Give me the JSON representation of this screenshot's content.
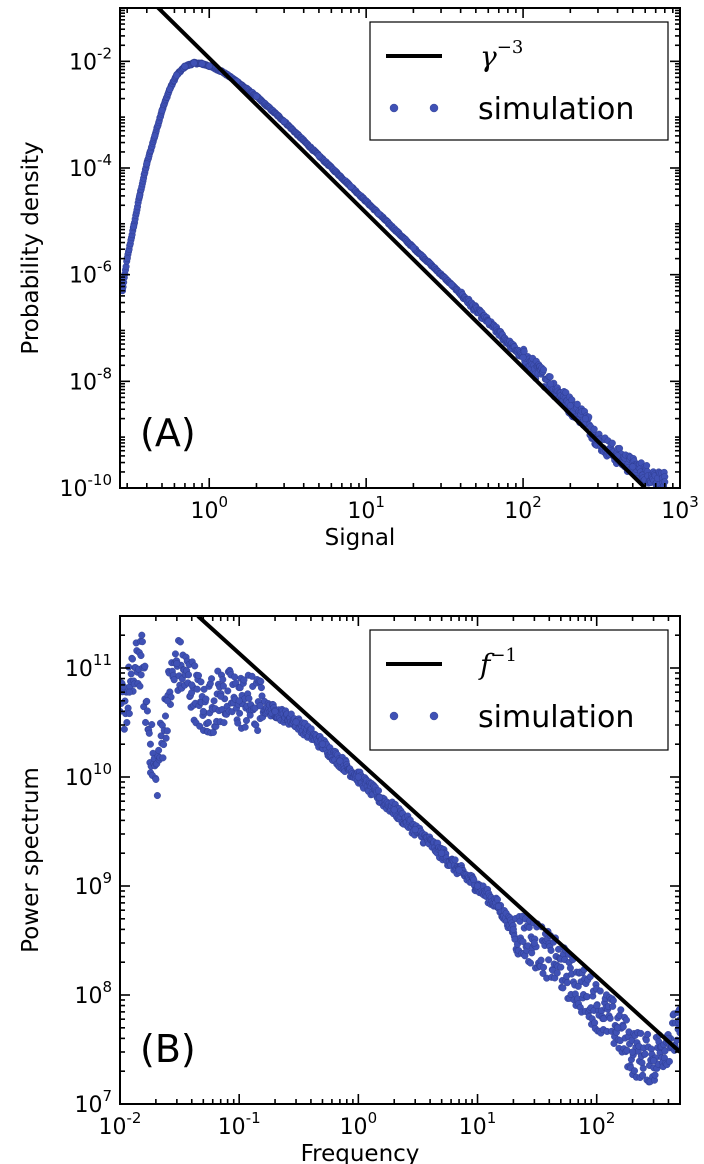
{
  "chart_data": [
    {
      "type": "scatter",
      "panel_label": "(A)",
      "xlabel": "Signal",
      "ylabel": "Probability density",
      "xscale": "log",
      "yscale": "log",
      "xlim": [
        0.27,
        1000
      ],
      "ylim": [
        1e-10,
        0.1
      ],
      "x_ticks": [
        {
          "base": "10",
          "exp": "0",
          "value": 1
        },
        {
          "base": "10",
          "exp": "1",
          "value": 10
        },
        {
          "base": "10",
          "exp": "2",
          "value": 100
        },
        {
          "base": "10",
          "exp": "3",
          "value": 1000
        }
      ],
      "y_ticks": [
        {
          "base": "10",
          "exp": "-10",
          "value": 1e-10
        },
        {
          "base": "10",
          "exp": "-8",
          "value": 1e-08
        },
        {
          "base": "10",
          "exp": "-6",
          "value": 1e-06
        },
        {
          "base": "10",
          "exp": "-4",
          "value": 0.0001
        },
        {
          "base": "10",
          "exp": "-2",
          "value": 0.01
        }
      ],
      "legend": {
        "position": "upper right",
        "line_label_base": "γ",
        "line_label_exp": "−3",
        "points_label": "simulation"
      },
      "series": [
        {
          "kind": "line",
          "style": "black solid",
          "points": [
            [
              0.28,
              0.46
            ],
            [
              600,
              1e-10
            ]
          ]
        },
        {
          "kind": "scatter",
          "color": "#3f51b5",
          "points": [
            [
              0.28,
              5e-07
            ],
            [
              0.3,
              2e-06
            ],
            [
              0.33,
              8e-06
            ],
            [
              0.36,
              3e-05
            ],
            [
              0.4,
              0.00012
            ],
            [
              0.45,
              0.0004
            ],
            [
              0.5,
              0.0012
            ],
            [
              0.56,
              0.003
            ],
            [
              0.62,
              0.0055
            ],
            [
              0.7,
              0.008
            ],
            [
              0.8,
              0.0093
            ],
            [
              0.9,
              0.009
            ],
            [
              1.0,
              0.0082
            ],
            [
              1.2,
              0.0065
            ],
            [
              1.5,
              0.0042
            ],
            [
              2.0,
              0.0022
            ],
            [
              3.0,
              0.00075
            ],
            [
              5.0,
              0.00017
            ],
            [
              8.0,
              4.5e-05
            ],
            [
              12,
              1.4e-05
            ],
            [
              20,
              3.2e-06
            ],
            [
              35,
              6.5e-07
            ],
            [
              60,
              1.3e-07
            ],
            [
              100,
              2.8e-08
            ],
            [
              150,
              9e-09
            ],
            [
              200,
              3.5e-09
            ],
            [
              250,
              2e-09
            ],
            [
              300,
              8e-10
            ],
            [
              400,
              4e-10
            ],
            [
              500,
              2.5e-10
            ],
            [
              800,
              1.3e-10
            ]
          ]
        }
      ]
    },
    {
      "type": "scatter",
      "panel_label": "(B)",
      "xlabel": "Frequency",
      "ylabel": "Power spectrum",
      "xscale": "log",
      "yscale": "log",
      "xlim": [
        0.01,
        500
      ],
      "ylim": [
        10000000.0,
        300000000000.0
      ],
      "x_ticks": [
        {
          "base": "10",
          "exp": "-2",
          "value": 0.01
        },
        {
          "base": "10",
          "exp": "-1",
          "value": 0.1
        },
        {
          "base": "10",
          "exp": "0",
          "value": 1
        },
        {
          "base": "10",
          "exp": "1",
          "value": 10
        },
        {
          "base": "10",
          "exp": "2",
          "value": 100
        }
      ],
      "y_ticks": [
        {
          "base": "10",
          "exp": "7",
          "value": 10000000.0
        },
        {
          "base": "10",
          "exp": "8",
          "value": 100000000.0
        },
        {
          "base": "10",
          "exp": "9",
          "value": 1000000000.0
        },
        {
          "base": "10",
          "exp": "10",
          "value": 10000000000.0
        },
        {
          "base": "10",
          "exp": "11",
          "value": 100000000000.0
        }
      ],
      "legend": {
        "position": "upper right",
        "line_label_base": "f",
        "line_label_exp": "−1",
        "points_label": "simulation"
      },
      "series": [
        {
          "kind": "line",
          "style": "black solid",
          "points": [
            [
              0.045,
              300000000000.0
            ],
            [
              500,
              30000000.0
            ]
          ]
        },
        {
          "kind": "scatter",
          "color": "#3f51b5",
          "points": [
            [
              0.01,
              40000000000.0
            ],
            [
              0.012,
              60000000000.0
            ],
            [
              0.015,
              130000000000.0
            ],
            [
              0.018,
              20000000000.0
            ],
            [
              0.02,
              9500000000.0
            ],
            [
              0.025,
              50000000000.0
            ],
            [
              0.03,
              110000000000.0
            ],
            [
              0.04,
              70000000000.0
            ],
            [
              0.05,
              40000000000.0
            ],
            [
              0.07,
              55000000000.0
            ],
            [
              0.1,
              50000000000.0
            ],
            [
              0.15,
              45000000000.0
            ],
            [
              0.2,
              40000000000.0
            ],
            [
              0.3,
              32000000000.0
            ],
            [
              0.5,
              20000000000.0
            ],
            [
              0.7,
              14000000000.0
            ],
            [
              1.0,
              10000000000.0
            ],
            [
              1.5,
              6500000000.0
            ],
            [
              2.0,
              5000000000.0
            ],
            [
              3.0,
              3300000000.0
            ],
            [
              5.0,
              2000000000.0
            ],
            [
              7.0,
              1400000000.0
            ],
            [
              10,
              1000000000.0
            ],
            [
              15,
              650000000.0
            ],
            [
              20,
              400000000.0
            ],
            [
              30,
              300000000.0
            ],
            [
              50,
              180000000.0
            ],
            [
              70,
              120000000.0
            ],
            [
              100,
              80000000.0
            ],
            [
              150,
              50000000.0
            ],
            [
              200,
              30000000.0
            ],
            [
              300,
              25000000.0
            ],
            [
              400,
              40000000.0
            ],
            [
              500,
              45000000.0
            ]
          ]
        }
      ]
    }
  ]
}
